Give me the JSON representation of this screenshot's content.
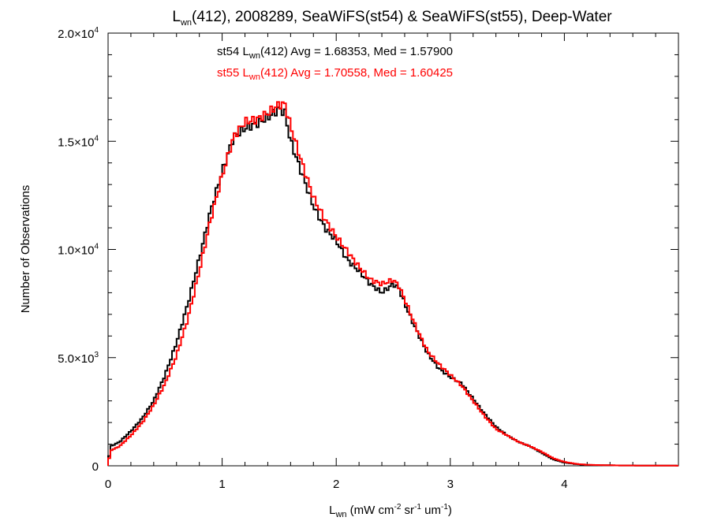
{
  "chart_data": {
    "type": "line",
    "step": true,
    "title": {
      "main": "L",
      "sub": "wn",
      "rest": "(412), 2008289, SeaWiFS(st54) & SeaWiFS(st55), Deep-Water"
    },
    "xlabel": {
      "main": "L",
      "sub": "wn",
      "p1": " (mW cm",
      "sup1": "-2",
      "p2": " sr",
      "sup2": "-1",
      "p3": " um",
      "sup3": "-1",
      "p4": ")"
    },
    "ylabel": "Number of Observations",
    "xlim": [
      0,
      5
    ],
    "ylim": [
      0,
      20000
    ],
    "xticks": [
      {
        "value": 0,
        "label": "0"
      },
      {
        "value": 1,
        "label": "1"
      },
      {
        "value": 2,
        "label": "2"
      },
      {
        "value": 3,
        "label": "3"
      },
      {
        "value": 4,
        "label": "4"
      }
    ],
    "yticks": [
      {
        "value": 0,
        "mant": "0",
        "exp": ""
      },
      {
        "value": 5000,
        "mant": "5.0×10",
        "exp": "3"
      },
      {
        "value": 10000,
        "mant": "1.0×10",
        "exp": "4"
      },
      {
        "value": 15000,
        "mant": "1.5×10",
        "exp": "4"
      },
      {
        "value": 20000,
        "mant": "2.0×10",
        "exp": "4"
      }
    ],
    "annotations": [
      {
        "color": "#000000",
        "pre": "st54 L",
        "sub": "wn",
        "post": "(412) Avg = 1.68353, Med = 1.57900"
      },
      {
        "color": "#ff0000",
        "pre": "st55 L",
        "sub": "wn",
        "post": "(412) Avg = 1.70558, Med = 1.60425"
      }
    ],
    "series": [
      {
        "color": "#000000",
        "points": [
          [
            0.0,
            0
          ],
          [
            0.02,
            900
          ],
          [
            0.1,
            1100
          ],
          [
            0.2,
            1600
          ],
          [
            0.3,
            2200
          ],
          [
            0.4,
            3000
          ],
          [
            0.5,
            4200
          ],
          [
            0.6,
            5700
          ],
          [
            0.7,
            7500
          ],
          [
            0.8,
            9600
          ],
          [
            0.9,
            11800
          ],
          [
            1.0,
            13600
          ],
          [
            1.1,
            15200
          ],
          [
            1.2,
            15600
          ],
          [
            1.3,
            15800
          ],
          [
            1.4,
            16100
          ],
          [
            1.5,
            16500
          ],
          [
            1.55,
            16300
          ],
          [
            1.6,
            15000
          ],
          [
            1.7,
            13500
          ],
          [
            1.8,
            12000
          ],
          [
            1.9,
            11000
          ],
          [
            2.0,
            10400
          ],
          [
            2.1,
            9500
          ],
          [
            2.2,
            9000
          ],
          [
            2.3,
            8400
          ],
          [
            2.4,
            8000
          ],
          [
            2.5,
            8400
          ],
          [
            2.55,
            8200
          ],
          [
            2.6,
            7500
          ],
          [
            2.7,
            6300
          ],
          [
            2.8,
            5200
          ],
          [
            2.9,
            4500
          ],
          [
            3.0,
            4100
          ],
          [
            3.1,
            3800
          ],
          [
            3.2,
            3100
          ],
          [
            3.3,
            2400
          ],
          [
            3.4,
            1800
          ],
          [
            3.5,
            1400
          ],
          [
            3.6,
            1100
          ],
          [
            3.7,
            900
          ],
          [
            3.8,
            600
          ],
          [
            3.9,
            300
          ],
          [
            4.0,
            150
          ],
          [
            4.1,
            80
          ],
          [
            4.2,
            40
          ],
          [
            4.5,
            15
          ],
          [
            5.0,
            5
          ]
        ]
      },
      {
        "color": "#ff0000",
        "points": [
          [
            0.0,
            0
          ],
          [
            0.02,
            700
          ],
          [
            0.1,
            900
          ],
          [
            0.2,
            1400
          ],
          [
            0.3,
            2000
          ],
          [
            0.4,
            2800
          ],
          [
            0.5,
            3800
          ],
          [
            0.6,
            5100
          ],
          [
            0.7,
            6800
          ],
          [
            0.8,
            9000
          ],
          [
            0.9,
            11400
          ],
          [
            1.0,
            13400
          ],
          [
            1.1,
            15200
          ],
          [
            1.2,
            15900
          ],
          [
            1.3,
            16000
          ],
          [
            1.4,
            16300
          ],
          [
            1.5,
            16700
          ],
          [
            1.55,
            16700
          ],
          [
            1.6,
            15700
          ],
          [
            1.7,
            14000
          ],
          [
            1.8,
            12400
          ],
          [
            1.9,
            11400
          ],
          [
            2.0,
            10600
          ],
          [
            2.1,
            9900
          ],
          [
            2.2,
            9200
          ],
          [
            2.3,
            8600
          ],
          [
            2.4,
            8400
          ],
          [
            2.5,
            8600
          ],
          [
            2.55,
            8300
          ],
          [
            2.6,
            7700
          ],
          [
            2.7,
            6400
          ],
          [
            2.8,
            5300
          ],
          [
            2.9,
            4700
          ],
          [
            3.0,
            4200
          ],
          [
            3.1,
            3700
          ],
          [
            3.2,
            3000
          ],
          [
            3.3,
            2300
          ],
          [
            3.4,
            1700
          ],
          [
            3.5,
            1400
          ],
          [
            3.6,
            1100
          ],
          [
            3.7,
            900
          ],
          [
            3.8,
            650
          ],
          [
            3.9,
            350
          ],
          [
            4.0,
            180
          ],
          [
            4.1,
            90
          ],
          [
            4.2,
            45
          ],
          [
            4.5,
            15
          ],
          [
            5.0,
            5
          ]
        ]
      }
    ]
  }
}
